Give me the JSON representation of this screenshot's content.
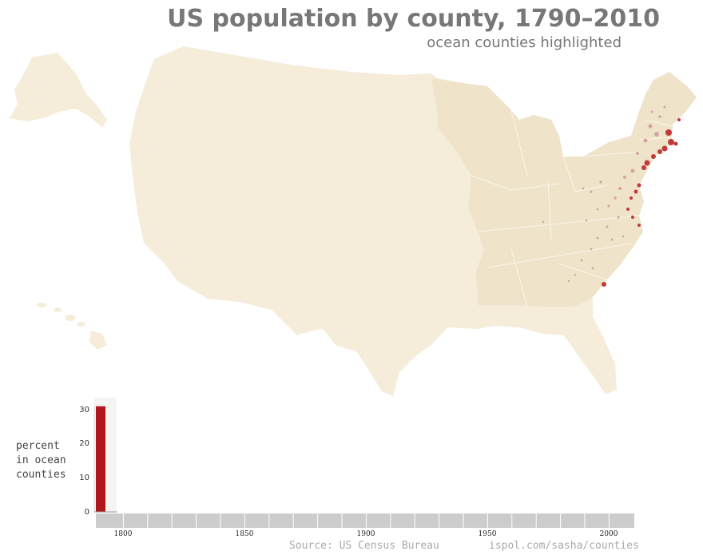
{
  "title": "US population by county, 1790–2010",
  "subtitle": "ocean counties highlighted",
  "chart": {
    "ylabel_lines": [
      "percent",
      "in ocean",
      "counties"
    ],
    "yticks": [
      "30",
      "20",
      "10",
      "0"
    ],
    "xticks": [
      "1800",
      "1850",
      "1900",
      "1950",
      "2000"
    ]
  },
  "footer": {
    "source": "Source: US Census Bureau",
    "site": "ispol.com/sasha/counties"
  },
  "colors": {
    "land": "#f5ecda",
    "settled_states": "#efe3ca",
    "ocean_county": "#c23b3b",
    "inland_county": "#d4a5a0",
    "bar": "#b0171c",
    "timeline": "#cccccc"
  },
  "chart_data": {
    "type": "bar",
    "ylabel": "percent in ocean counties",
    "ylim": [
      0,
      30
    ],
    "xlim": [
      1790,
      2010
    ],
    "x": [
      1790
    ],
    "values": [
      31
    ]
  }
}
